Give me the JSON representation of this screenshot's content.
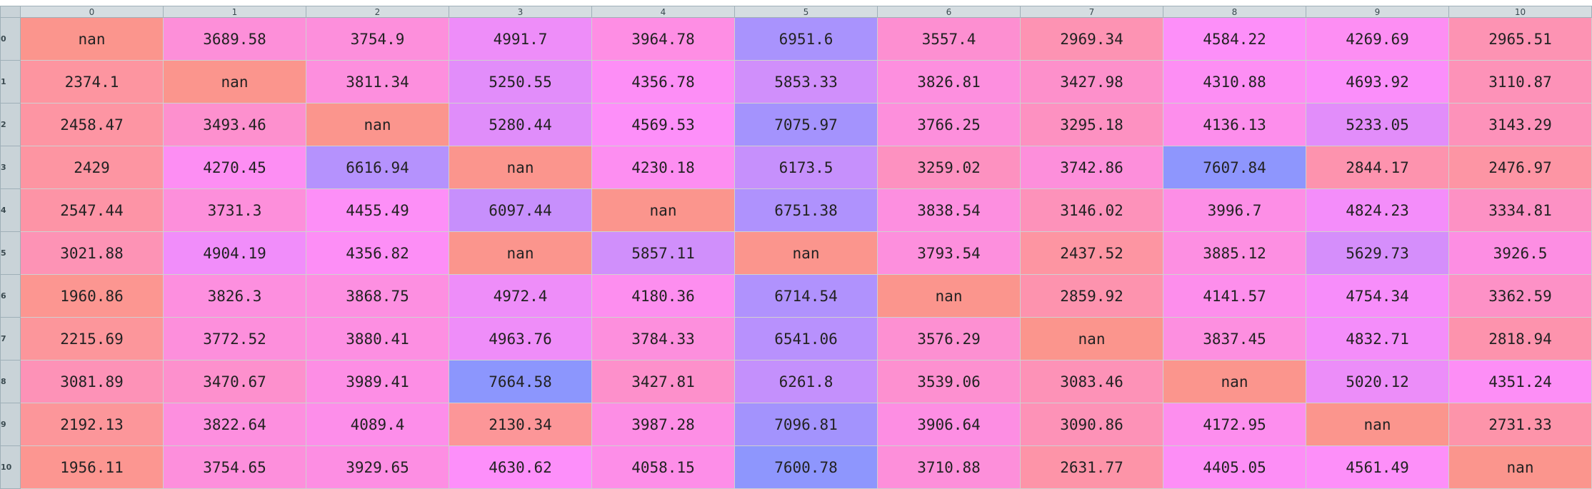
{
  "columns": [
    "0",
    "1",
    "2",
    "3",
    "4",
    "5",
    "6",
    "7",
    "8",
    "9",
    "10"
  ],
  "rows": [
    {
      "label": "0",
      "cells": [
        {
          "v": "nan",
          "c": "#fb958d"
        },
        {
          "v": "3689.58",
          "c": "#fd8fd9"
        },
        {
          "v": "3754.9",
          "c": "#fd8fdc"
        },
        {
          "v": "4991.7",
          "c": "#ee8df9"
        },
        {
          "v": "3964.78",
          "c": "#fe8ee4"
        },
        {
          "v": "6951.6",
          "c": "#a993fd"
        },
        {
          "v": "3557.4",
          "c": "#fd8fd1"
        },
        {
          "v": "2969.34",
          "c": "#fd93b3"
        },
        {
          "v": "4584.22",
          "c": "#fd8ff9"
        },
        {
          "v": "4269.69",
          "c": "#fd8ef3"
        },
        {
          "v": "2965.51",
          "c": "#fd93b3"
        }
      ]
    },
    {
      "label": "1",
      "cells": [
        {
          "v": "2374.1",
          "c": "#fd95a0"
        },
        {
          "v": "nan",
          "c": "#fb958d"
        },
        {
          "v": "3811.34",
          "c": "#fd8fde"
        },
        {
          "v": "5250.55",
          "c": "#e28dfa"
        },
        {
          "v": "4356.78",
          "c": "#fd8ef6"
        },
        {
          "v": "5853.33",
          "c": "#d08ffb"
        },
        {
          "v": "3826.81",
          "c": "#fd8fdf"
        },
        {
          "v": "3427.98",
          "c": "#fd90cb"
        },
        {
          "v": "4310.88",
          "c": "#fd8ef4"
        },
        {
          "v": "4693.92",
          "c": "#fb8efa"
        },
        {
          "v": "3110.87",
          "c": "#fd92b8"
        }
      ]
    },
    {
      "label": "2",
      "cells": [
        {
          "v": "2458.47",
          "c": "#fd95a3"
        },
        {
          "v": "3493.46",
          "c": "#fd90ce"
        },
        {
          "v": "nan",
          "c": "#fb958d"
        },
        {
          "v": "5280.44",
          "c": "#e08dfa"
        },
        {
          "v": "4569.53",
          "c": "#fd8ff9"
        },
        {
          "v": "7075.97",
          "c": "#a493fd"
        },
        {
          "v": "3766.25",
          "c": "#fd8fdc"
        },
        {
          "v": "3295.18",
          "c": "#fd91c1"
        },
        {
          "v": "4136.13",
          "c": "#fd8eec"
        },
        {
          "v": "5233.05",
          "c": "#e28dfa"
        },
        {
          "v": "3143.29",
          "c": "#fd92ba"
        }
      ]
    },
    {
      "label": "3",
      "cells": [
        {
          "v": "2429",
          "c": "#fd95a2"
        },
        {
          "v": "4270.45",
          "c": "#fd8ef3"
        },
        {
          "v": "6616.94",
          "c": "#b592fd"
        },
        {
          "v": "nan",
          "c": "#fb958d"
        },
        {
          "v": "4230.18",
          "c": "#fd8ef1"
        },
        {
          "v": "6173.5",
          "c": "#c690fc"
        },
        {
          "v": "3259.02",
          "c": "#fd91c0"
        },
        {
          "v": "3742.86",
          "c": "#fd8fdb"
        },
        {
          "v": "7607.84",
          "c": "#8e96fd"
        },
        {
          "v": "2844.17",
          "c": "#fd93ae"
        },
        {
          "v": "2476.97",
          "c": "#fd95a4"
        }
      ]
    },
    {
      "label": "4",
      "cells": [
        {
          "v": "2547.44",
          "c": "#fd94a6"
        },
        {
          "v": "3731.3",
          "c": "#fd8fdb"
        },
        {
          "v": "4455.49",
          "c": "#fd8ff7"
        },
        {
          "v": "6097.44",
          "c": "#c78ffc"
        },
        {
          "v": "nan",
          "c": "#fb958d"
        },
        {
          "v": "6751.38",
          "c": "#af92fd"
        },
        {
          "v": "3838.54",
          "c": "#fd8fe0"
        },
        {
          "v": "3146.02",
          "c": "#fd92ba"
        },
        {
          "v": "3996.7",
          "c": "#fd8ee6"
        },
        {
          "v": "4824.23",
          "c": "#f48dfa"
        },
        {
          "v": "3334.81",
          "c": "#fd91c4"
        }
      ]
    },
    {
      "label": "5",
      "cells": [
        {
          "v": "3021.88",
          "c": "#fd93b5"
        },
        {
          "v": "4904.19",
          "c": "#f18dfa"
        },
        {
          "v": "4356.82",
          "c": "#fd8ef6"
        },
        {
          "v": "nan",
          "c": "#fb958d"
        },
        {
          "v": "5857.11",
          "c": "#d08ffb"
        },
        {
          "v": "nan",
          "c": "#fb958d"
        },
        {
          "v": "3793.54",
          "c": "#fd8fdd"
        },
        {
          "v": "2437.52",
          "c": "#fd95a2"
        },
        {
          "v": "3885.12",
          "c": "#fd8fe2"
        },
        {
          "v": "5629.73",
          "c": "#d58efb"
        },
        {
          "v": "3926.5",
          "c": "#fd8ee3"
        }
      ]
    },
    {
      "label": "6",
      "cells": [
        {
          "v": "1960.86",
          "c": "#fc9691"
        },
        {
          "v": "3826.3",
          "c": "#fd8fdf"
        },
        {
          "v": "3868.75",
          "c": "#fd8fe1"
        },
        {
          "v": "4972.4",
          "c": "#ee8df9"
        },
        {
          "v": "4180.36",
          "c": "#fd8eef"
        },
        {
          "v": "6714.54",
          "c": "#b092fd"
        },
        {
          "v": "nan",
          "c": "#fb958d"
        },
        {
          "v": "2859.92",
          "c": "#fd93ae"
        },
        {
          "v": "4141.57",
          "c": "#fd8eec"
        },
        {
          "v": "4754.34",
          "c": "#f78dfa"
        },
        {
          "v": "3362.59",
          "c": "#fd91c6"
        }
      ]
    },
    {
      "label": "7",
      "cells": [
        {
          "v": "2215.69",
          "c": "#fc969b"
        },
        {
          "v": "3772.52",
          "c": "#fd8fdc"
        },
        {
          "v": "3880.41",
          "c": "#fd8fe2"
        },
        {
          "v": "4963.76",
          "c": "#ef8df9"
        },
        {
          "v": "3784.33",
          "c": "#fd8fdd"
        },
        {
          "v": "6541.06",
          "c": "#b891fd"
        },
        {
          "v": "3576.29",
          "c": "#fd90d2"
        },
        {
          "v": "nan",
          "c": "#fb958d"
        },
        {
          "v": "3837.45",
          "c": "#fd8fe0"
        },
        {
          "v": "4832.71",
          "c": "#f48dfa"
        },
        {
          "v": "2818.94",
          "c": "#fd93ad"
        }
      ]
    },
    {
      "label": "8",
      "cells": [
        {
          "v": "3081.89",
          "c": "#fd92b7"
        },
        {
          "v": "3470.67",
          "c": "#fd90cd"
        },
        {
          "v": "3989.41",
          "c": "#fd8ee5"
        },
        {
          "v": "7664.58",
          "c": "#8c96fd"
        },
        {
          "v": "3427.81",
          "c": "#fd90cb"
        },
        {
          "v": "6261.8",
          "c": "#c490fc"
        },
        {
          "v": "3539.06",
          "c": "#fd90d0"
        },
        {
          "v": "3083.46",
          "c": "#fd92b7"
        },
        {
          "v": "nan",
          "c": "#fb958d"
        },
        {
          "v": "5020.12",
          "c": "#ec8df9"
        },
        {
          "v": "4351.24",
          "c": "#fd8ef6"
        }
      ]
    },
    {
      "label": "9",
      "cells": [
        {
          "v": "2192.13",
          "c": "#fc969a"
        },
        {
          "v": "3822.64",
          "c": "#fd8fdf"
        },
        {
          "v": "4089.4",
          "c": "#fd8eea"
        },
        {
          "v": "2130.34",
          "c": "#fc9698"
        },
        {
          "v": "3987.28",
          "c": "#fd8ee5"
        },
        {
          "v": "7096.81",
          "c": "#a393fd"
        },
        {
          "v": "3906.64",
          "c": "#fd8ee3"
        },
        {
          "v": "3090.86",
          "c": "#fd92b7"
        },
        {
          "v": "4172.95",
          "c": "#fd8eee"
        },
        {
          "v": "nan",
          "c": "#fb958d"
        },
        {
          "v": "2731.33",
          "c": "#fd94aa"
        }
      ]
    },
    {
      "label": "10",
      "cells": [
        {
          "v": "1956.11",
          "c": "#fc9691"
        },
        {
          "v": "3754.65",
          "c": "#fd8fdc"
        },
        {
          "v": "3929.65",
          "c": "#fd8ee3"
        },
        {
          "v": "4630.62",
          "c": "#fd8ffa"
        },
        {
          "v": "4058.15",
          "c": "#fd8ee8"
        },
        {
          "v": "7600.78",
          "c": "#8e96fd"
        },
        {
          "v": "3710.88",
          "c": "#fd8fda"
        },
        {
          "v": "2631.77",
          "c": "#fd94a8"
        },
        {
          "v": "4405.05",
          "c": "#fd8ef6"
        },
        {
          "v": "4561.49",
          "c": "#fd8ff9"
        },
        {
          "v": "nan",
          "c": "#fb958d"
        }
      ]
    }
  ]
}
